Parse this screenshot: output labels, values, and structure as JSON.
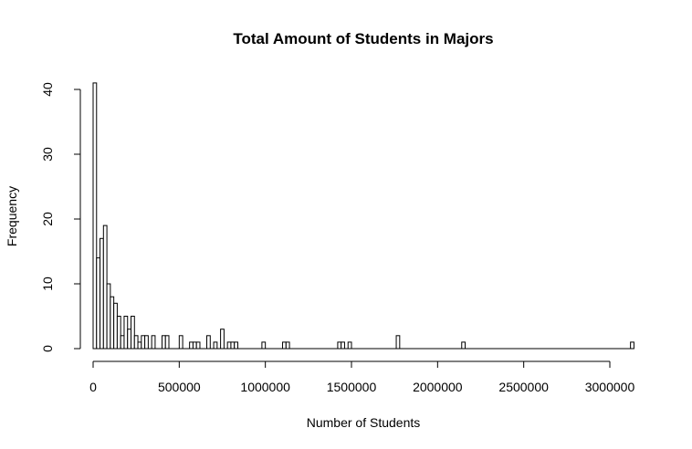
{
  "chart_data": {
    "type": "histogram",
    "title": "Total Amount of Students in Majors",
    "xlabel": "Number of Students",
    "ylabel": "Frequency",
    "bin_width": 20000,
    "xlim": [
      0,
      3140000
    ],
    "ylim": [
      0,
      40
    ],
    "x_ticks": [
      0,
      500000,
      1000000,
      1500000,
      2000000,
      2500000,
      3000000
    ],
    "x_tick_labels": [
      "0",
      "500000",
      "1000000",
      "1500000",
      "2000000",
      "2500000",
      "3000000"
    ],
    "y_ticks": [
      0,
      10,
      20,
      30,
      40
    ],
    "y_tick_labels": [
      "0",
      "10",
      "20",
      "30",
      "40"
    ],
    "bins": [
      {
        "x0": 0,
        "x1": 20000,
        "count": 41
      },
      {
        "x0": 20000,
        "x1": 40000,
        "count": 14
      },
      {
        "x0": 40000,
        "x1": 60000,
        "count": 17
      },
      {
        "x0": 60000,
        "x1": 80000,
        "count": 19
      },
      {
        "x0": 80000,
        "x1": 100000,
        "count": 10
      },
      {
        "x0": 100000,
        "x1": 120000,
        "count": 8
      },
      {
        "x0": 120000,
        "x1": 140000,
        "count": 7
      },
      {
        "x0": 140000,
        "x1": 160000,
        "count": 5
      },
      {
        "x0": 160000,
        "x1": 180000,
        "count": 2
      },
      {
        "x0": 180000,
        "x1": 200000,
        "count": 5
      },
      {
        "x0": 200000,
        "x1": 220000,
        "count": 3
      },
      {
        "x0": 220000,
        "x1": 240000,
        "count": 5
      },
      {
        "x0": 240000,
        "x1": 260000,
        "count": 2
      },
      {
        "x0": 260000,
        "x1": 280000,
        "count": 1
      },
      {
        "x0": 280000,
        "x1": 300000,
        "count": 2
      },
      {
        "x0": 300000,
        "x1": 320000,
        "count": 2
      },
      {
        "x0": 320000,
        "x1": 340000,
        "count": 0
      },
      {
        "x0": 340000,
        "x1": 360000,
        "count": 2
      },
      {
        "x0": 400000,
        "x1": 420000,
        "count": 2
      },
      {
        "x0": 420000,
        "x1": 440000,
        "count": 2
      },
      {
        "x0": 500000,
        "x1": 520000,
        "count": 2
      },
      {
        "x0": 560000,
        "x1": 580000,
        "count": 1
      },
      {
        "x0": 580000,
        "x1": 600000,
        "count": 1
      },
      {
        "x0": 600000,
        "x1": 620000,
        "count": 1
      },
      {
        "x0": 660000,
        "x1": 680000,
        "count": 2
      },
      {
        "x0": 700000,
        "x1": 720000,
        "count": 1
      },
      {
        "x0": 740000,
        "x1": 760000,
        "count": 3
      },
      {
        "x0": 780000,
        "x1": 800000,
        "count": 1
      },
      {
        "x0": 800000,
        "x1": 820000,
        "count": 1
      },
      {
        "x0": 820000,
        "x1": 840000,
        "count": 1
      },
      {
        "x0": 980000,
        "x1": 1000000,
        "count": 1
      },
      {
        "x0": 1100000,
        "x1": 1120000,
        "count": 1
      },
      {
        "x0": 1120000,
        "x1": 1140000,
        "count": 1
      },
      {
        "x0": 1420000,
        "x1": 1440000,
        "count": 1
      },
      {
        "x0": 1440000,
        "x1": 1460000,
        "count": 1
      },
      {
        "x0": 1480000,
        "x1": 1500000,
        "count": 1
      },
      {
        "x0": 1760000,
        "x1": 1780000,
        "count": 2
      },
      {
        "x0": 2140000,
        "x1": 2160000,
        "count": 1
      },
      {
        "x0": 3120000,
        "x1": 3140000,
        "count": 1
      }
    ]
  }
}
